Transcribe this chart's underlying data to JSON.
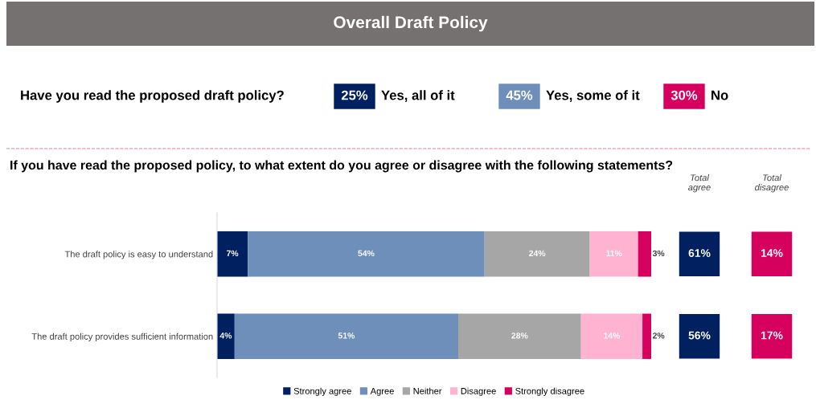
{
  "chart_data": [
    {
      "type": "other",
      "title": "Overall Draft Policy",
      "subtitle": "Have you read the proposed draft policy?",
      "categories": [
        "Yes, all of it",
        "Yes, some of it",
        "No"
      ],
      "value_labels": [
        "25%",
        "45%",
        "30%"
      ],
      "colors": [
        "#002060",
        "#6f8fbb",
        "#d6005f"
      ]
    },
    {
      "type": "bar",
      "orientation": "horizontal",
      "stacked": true,
      "title": "If you have read the proposed policy, to what extent do you agree or disagree with the following statements?",
      "categories": [
        "The draft policy is easy to understand",
        "The draft policy provides sufficient information"
      ],
      "tick_labels": "y",
      "legend": "bottom",
      "grid": false,
      "series": [
        {
          "name": "Strongly agree",
          "color": "#002060",
          "values": [
            7,
            4
          ],
          "value_labels": [
            "7%",
            "4%"
          ]
        },
        {
          "name": "Agree",
          "color": "#6f8fbb",
          "values": [
            54,
            51
          ],
          "value_labels": [
            "54%",
            "51%"
          ]
        },
        {
          "name": "Neither",
          "color": "#a6a6a6",
          "values": [
            24,
            28
          ],
          "value_labels": [
            "24%",
            "28%"
          ]
        },
        {
          "name": "Disagree",
          "color": "#ffb3d1",
          "values": [
            11,
            14
          ],
          "value_labels": [
            "11%",
            "14%"
          ]
        },
        {
          "name": "Strongly disagree",
          "color": "#d6005f",
          "values": [
            3,
            2
          ],
          "value_labels": [
            "3%",
            "2%"
          ]
        }
      ]
    },
    {
      "type": "other",
      "categories": [
        "Total agree",
        "Total disagree"
      ],
      "series": [
        {
          "colors": [
            "#002060",
            "#d6005f"
          ],
          "values": [
            61,
            14
          ],
          "value_labels": [
            "61%",
            "14%"
          ]
        },
        {
          "colors": [
            "#002060",
            "#d6005f"
          ],
          "values": [
            56,
            17
          ],
          "value_labels": [
            "56%",
            "17%"
          ]
        }
      ]
    }
  ]
}
